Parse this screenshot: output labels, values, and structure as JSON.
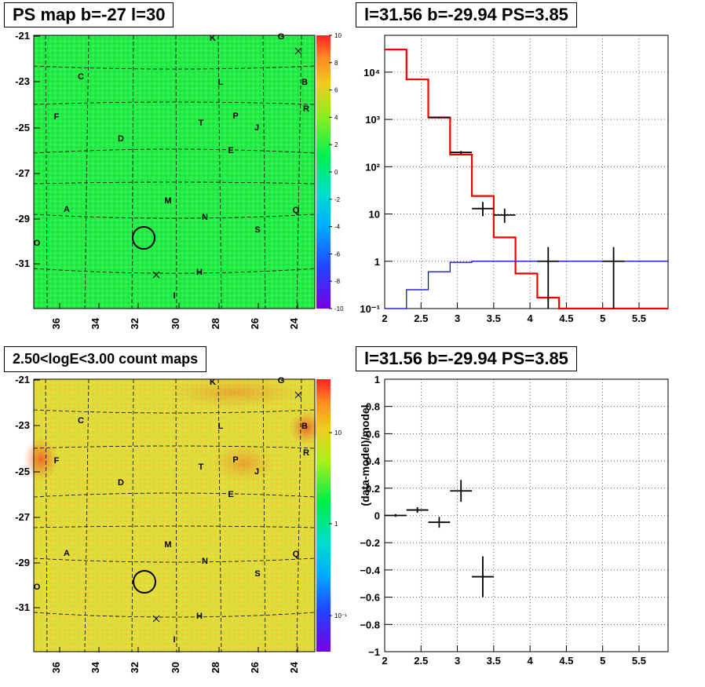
{
  "titles": {
    "p1": "PS map b=-27 l=30",
    "p2": "l=31.56 b=-29.94 PS=3.85",
    "p3": "2.50<logE<3.00 count maps",
    "p4": "l=31.56 b=-29.94 PS=3.85"
  },
  "maps": {
    "x_ticks": [
      "36",
      "34",
      "32",
      "30",
      "28",
      "26",
      "24"
    ],
    "y_ticks": [
      "-21",
      "-23",
      "-25",
      "-27",
      "-29",
      "-31"
    ],
    "sources": [
      "K",
      "G",
      "C",
      "L",
      "B",
      "F",
      "T",
      "P",
      "R",
      "J",
      "D",
      "E",
      "M",
      "A",
      "N",
      "Q",
      "S",
      "O",
      "H",
      "I"
    ],
    "colorbar1": [
      "10",
      "8",
      "6",
      "4",
      "2",
      "0",
      "-2",
      "-4",
      "-6",
      "-8",
      "-10"
    ],
    "colorbar2": [
      "10",
      "1",
      "10⁻¹"
    ],
    "colors": {
      "bg1": "#22ee44",
      "bg2": "#e8dd44",
      "hot": "#ee3322"
    }
  },
  "chart_data": [
    {
      "type": "step",
      "panel": "spectrum",
      "title": "l=31.56 b=-29.94 PS=3.85",
      "xlabel": "",
      "ylabel": "",
      "x_ticks": [
        "2",
        "2.5",
        "3",
        "3.5",
        "4",
        "4.5",
        "5",
        "5.5"
      ],
      "y_ticks": [
        "10⁴",
        "10³",
        "10²",
        "10",
        "1",
        "10⁻¹"
      ],
      "xlim": [
        2.0,
        5.9
      ],
      "ylim": [
        0.1,
        60000
      ],
      "log_y": true,
      "grid": true,
      "series": [
        {
          "color": "#ee0000",
          "edges": [
            2.0,
            2.3,
            2.6,
            2.9,
            3.2,
            3.5,
            3.8,
            4.1,
            4.4,
            5.9
          ],
          "values": [
            30000,
            7000,
            1100,
            180,
            24,
            3.2,
            0.55,
            0.17,
            0.1
          ]
        },
        {
          "color": "#0000cc",
          "edges": [
            2.0,
            2.3,
            2.6,
            2.9,
            3.2,
            3.5,
            5.9
          ],
          "values": [
            0.1,
            0.25,
            0.6,
            0.95,
            1.0,
            1.0
          ]
        }
      ],
      "points": [
        {
          "x": 2.75,
          "y": 1100,
          "xerr": 0.15,
          "ylo": 1050,
          "yhi": 1150
        },
        {
          "x": 3.05,
          "y": 200,
          "xerr": 0.15,
          "ylo": 185,
          "yhi": 215
        },
        {
          "x": 3.35,
          "y": 13,
          "xerr": 0.15,
          "ylo": 9,
          "yhi": 18
        },
        {
          "x": 3.65,
          "y": 9.5,
          "xerr": 0.15,
          "ylo": 6.5,
          "yhi": 13
        },
        {
          "x": 4.25,
          "y": 1.0,
          "xerr": 0.15,
          "ylo": 0.1,
          "yhi": 2.0
        },
        {
          "x": 5.15,
          "y": 1.0,
          "xerr": 0.15,
          "ylo": 0.1,
          "yhi": 2.0
        }
      ]
    },
    {
      "type": "scatter",
      "panel": "residual",
      "title": "l=31.56 b=-29.94 PS=3.85",
      "xlabel": "",
      "ylabel": "(data-model)/model",
      "x_ticks": [
        "2",
        "2.5",
        "3",
        "3.5",
        "4",
        "4.5",
        "5",
        "5.5"
      ],
      "y_ticks": [
        "1",
        "0.8",
        "0.6",
        "0.4",
        "0.2",
        "0",
        "−0.2",
        "−0.4",
        "−0.6",
        "−0.8",
        "−1"
      ],
      "xlim": [
        2.0,
        5.9
      ],
      "ylim": [
        -1,
        1
      ],
      "grid": true,
      "points": [
        {
          "x": 2.15,
          "y": 0.0,
          "xerr": 0.15,
          "yerr": 0.01
        },
        {
          "x": 2.45,
          "y": 0.04,
          "xerr": 0.15,
          "yerr": 0.02
        },
        {
          "x": 2.75,
          "y": -0.05,
          "xerr": 0.15,
          "yerr": 0.04
        },
        {
          "x": 3.05,
          "y": 0.18,
          "xerr": 0.15,
          "yerr": 0.08
        },
        {
          "x": 3.35,
          "y": -0.45,
          "xerr": 0.15,
          "yerr": 0.15
        }
      ]
    }
  ]
}
